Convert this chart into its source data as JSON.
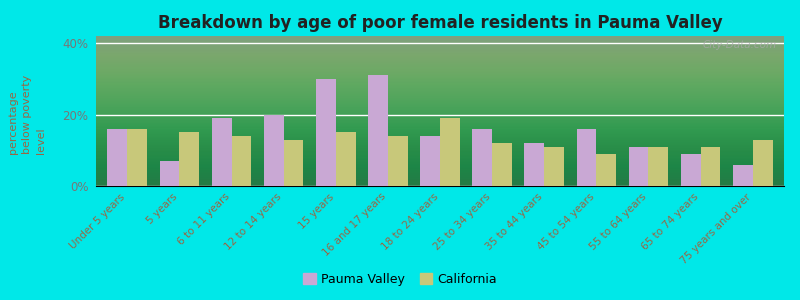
{
  "title": "Breakdown by age of poor female residents in Pauma Valley",
  "categories": [
    "Under 5 years",
    "5 years",
    "6 to 11 years",
    "12 to 14 years",
    "15 years",
    "16 and 17 years",
    "18 to 24 years",
    "25 to 34 years",
    "35 to 44 years",
    "45 to 54 years",
    "55 to 64 years",
    "65 to 74 years",
    "75 years and over"
  ],
  "pauma_valley": [
    16,
    7,
    19,
    20,
    30,
    31,
    14,
    16,
    12,
    16,
    11,
    9,
    6
  ],
  "california": [
    16,
    15,
    14,
    13,
    15,
    14,
    19,
    12,
    11,
    9,
    11,
    11,
    13
  ],
  "pauma_color": "#c9a8d4",
  "california_color": "#c8c87a",
  "outer_bg": "#00e8e8",
  "ylabel": "percentage\nbelow poverty\nlevel",
  "ylim": [
    0,
    42
  ],
  "ytick_labels": [
    "0%",
    "20%",
    "40%"
  ],
  "ytick_vals": [
    0,
    20,
    40
  ],
  "watermark": "City-Data.com",
  "legend_pauma": "Pauma Valley",
  "legend_california": "California",
  "bar_width": 0.38,
  "title_fontsize": 12,
  "tick_label_color": "#996644",
  "ylabel_color": "#996644",
  "ytick_color": "#777777"
}
